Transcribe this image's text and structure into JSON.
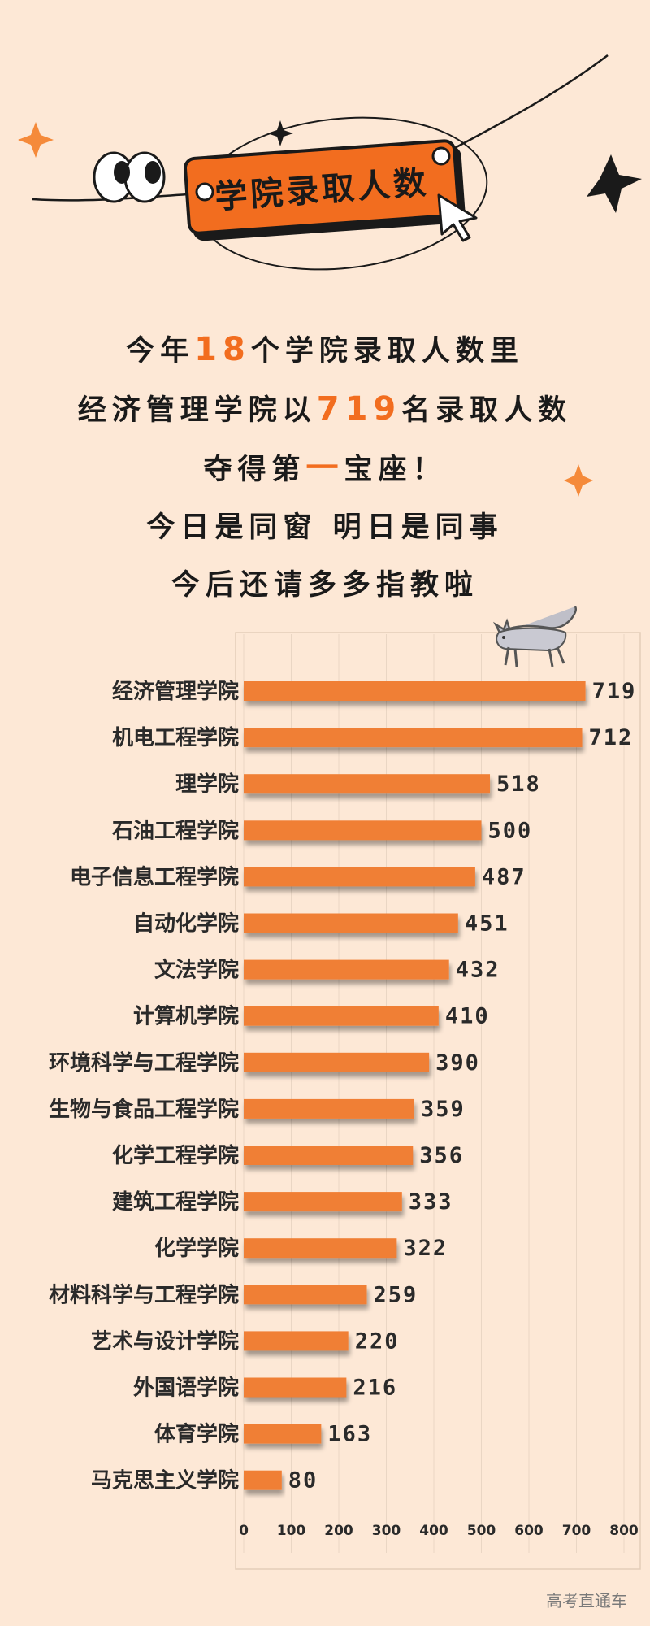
{
  "title": "学院录取人数",
  "intro": {
    "line1": {
      "pre": "今年",
      "num": "18",
      "post": "个学院录取人数里"
    },
    "line2": {
      "pre": "经济管理学院以",
      "num": "719",
      "post": "名录取人数"
    },
    "line3": {
      "pre": "夺得第",
      "num": "一",
      "post": "宝座！"
    },
    "line4": "今日是同窗 明日是同事",
    "line5": "今后还请多多指教啦"
  },
  "watermark": "高考直通车",
  "colors": {
    "bar": "#f07f35",
    "accent": "#f26d1f",
    "background": "#fde8d6"
  },
  "icons": [
    "eyes-icon",
    "star-icon",
    "sparkle-icon",
    "cursor-icon",
    "cat-icon"
  ],
  "chart_data": {
    "type": "bar",
    "orientation": "horizontal",
    "categories": [
      "经济管理学院",
      "机电工程学院",
      "理学院",
      "石油工程学院",
      "电子信息工程学院",
      "自动化学院",
      "文法学院",
      "计算机学院",
      "环境科学与工程学院",
      "生物与食品工程学院",
      "化学工程学院",
      "建筑工程学院",
      "化学学院",
      "材料科学与工程学院",
      "艺术与设计学院",
      "外国语学院",
      "体育学院",
      "马克思主义学院"
    ],
    "values": [
      719,
      712,
      518,
      500,
      487,
      451,
      432,
      410,
      390,
      359,
      356,
      333,
      322,
      259,
      220,
      216,
      163,
      80
    ],
    "xlim": [
      0,
      800
    ],
    "xticks": [
      "0",
      "100",
      "200",
      "300",
      "400",
      "500",
      "600",
      "700",
      "800"
    ],
    "grid": true,
    "legend": "none"
  }
}
